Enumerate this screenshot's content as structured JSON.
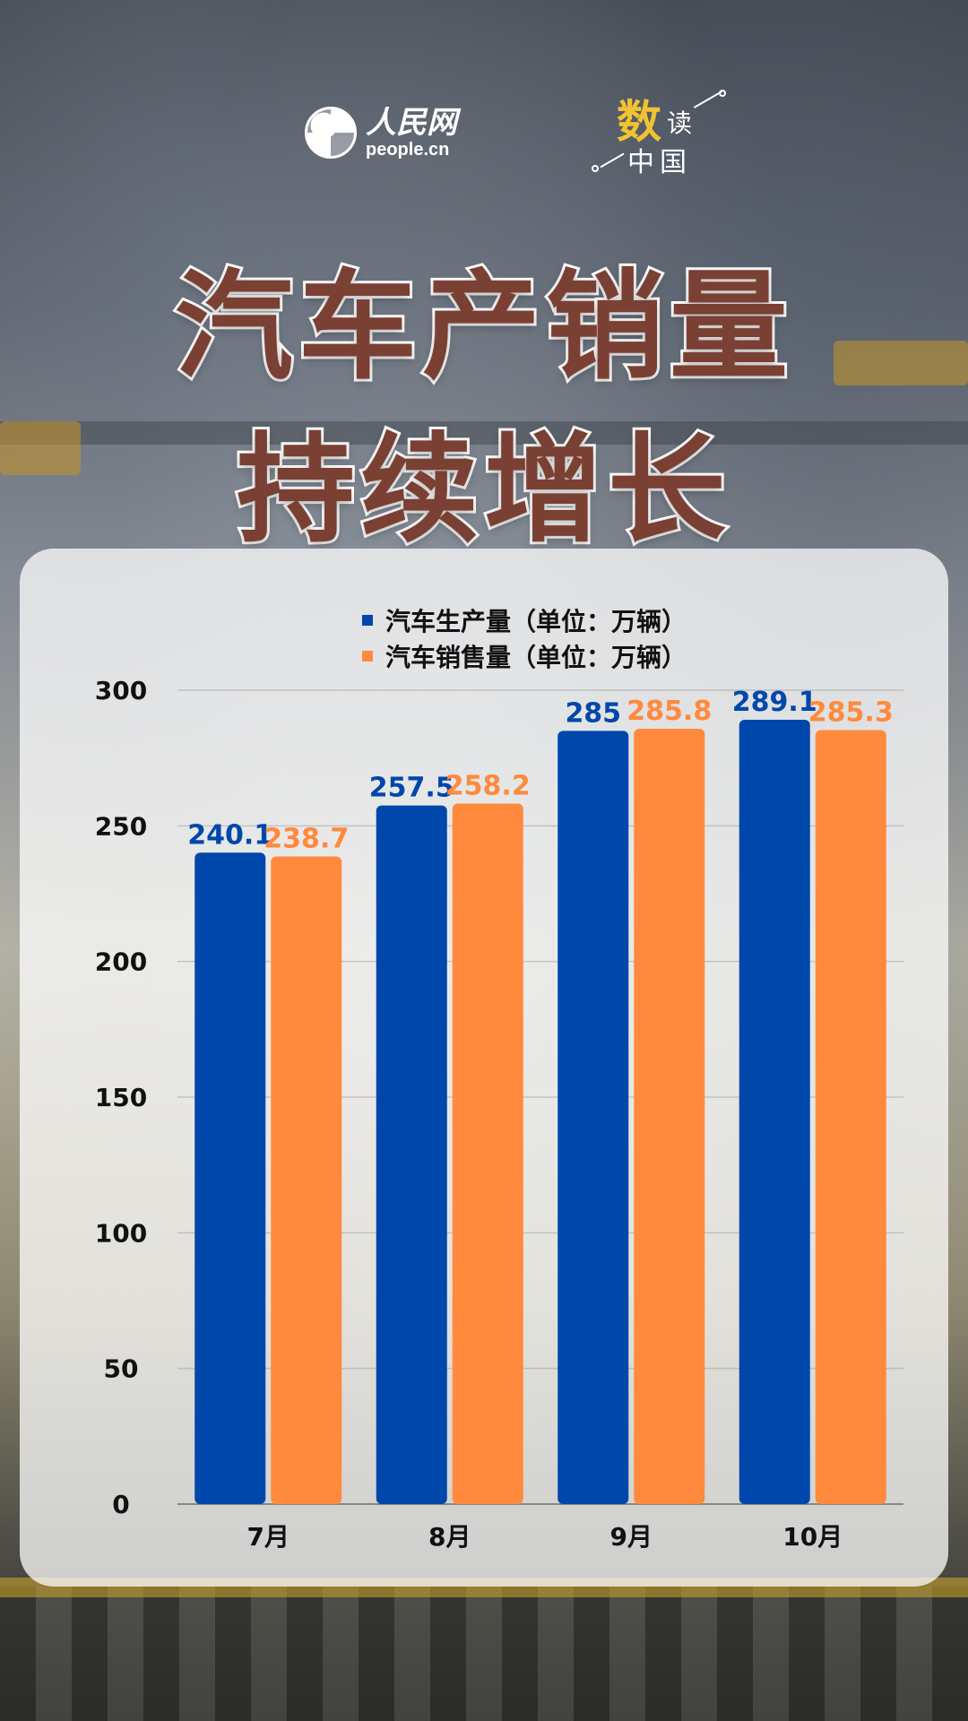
{
  "header": {
    "logo_cn": "人民网",
    "logo_en": "people.cn",
    "badge_char1": "数",
    "badge_char2": "读",
    "badge_chars34": "中国",
    "title_line1": "汽车产销量",
    "title_line2": "持续增长"
  },
  "colors": {
    "production": "#0047ab",
    "sales": "#ff8a3d",
    "title": "#7a4033"
  },
  "chart_data": {
    "type": "bar",
    "categories": [
      "7月",
      "8月",
      "9月",
      "10月"
    ],
    "series": [
      {
        "name": "汽车生产量（单位：万辆）",
        "values": [
          240.1,
          257.5,
          285,
          289.1
        ],
        "labels": [
          "240.1",
          "257.5",
          "285",
          "289.1"
        ]
      },
      {
        "name": "汽车销售量（单位：万辆）",
        "values": [
          238.7,
          258.2,
          285.8,
          285.3
        ],
        "labels": [
          "238.7",
          "258.2",
          "285.8",
          "285.3"
        ]
      }
    ],
    "ylim": [
      0,
      300
    ],
    "yticks": [
      "0",
      "50",
      "100",
      "150",
      "200",
      "250",
      "300"
    ],
    "grid": true,
    "legend_position": "top"
  }
}
